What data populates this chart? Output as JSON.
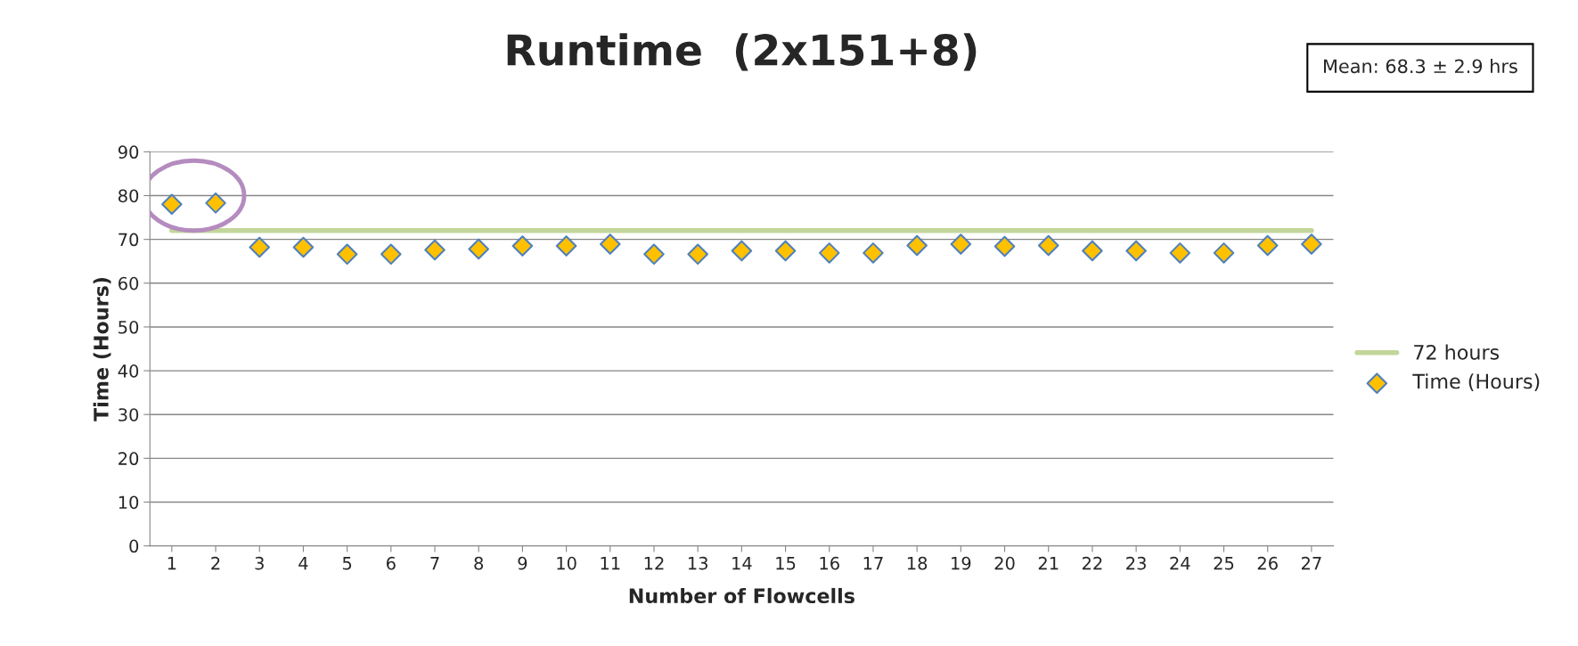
{
  "chart_data": {
    "type": "scatter",
    "title": "Runtime  (2x151+8)",
    "xlabel": "Number of Flowcells",
    "ylabel": "Time (Hours)",
    "categories": [
      "1",
      "2",
      "3",
      "4",
      "5",
      "6",
      "7",
      "8",
      "9",
      "10",
      "11",
      "12",
      "13",
      "14",
      "15",
      "16",
      "17",
      "18",
      "19",
      "20",
      "21",
      "22",
      "23",
      "24",
      "25",
      "26",
      "27"
    ],
    "series": [
      {
        "name": "72 hours",
        "type": "line",
        "color": "#c3d69b",
        "values": [
          72,
          72,
          72,
          72,
          72,
          72,
          72,
          72,
          72,
          72,
          72,
          72,
          72,
          72,
          72,
          72,
          72,
          72,
          72,
          72,
          72,
          72,
          72,
          72,
          72,
          72,
          72
        ]
      },
      {
        "name": "Time (Hours)",
        "color": "#ffc000",
        "marker": "diamond",
        "values": [
          78.0,
          78.3,
          68.2,
          68.2,
          66.6,
          66.6,
          67.6,
          67.8,
          68.5,
          68.5,
          68.9,
          66.6,
          66.6,
          67.4,
          67.4,
          66.9,
          66.9,
          68.6,
          68.9,
          68.4,
          68.6,
          67.4,
          67.4,
          66.9,
          66.9,
          68.6,
          68.9
        ]
      }
    ],
    "ylim": [
      0,
      90
    ],
    "yticks": [
      0,
      10,
      20,
      30,
      40,
      50,
      60,
      70,
      80,
      90
    ],
    "grid": "y",
    "legend": "right",
    "annotations": [
      "Mean: 68.3 ± 2.9 hrs"
    ]
  }
}
